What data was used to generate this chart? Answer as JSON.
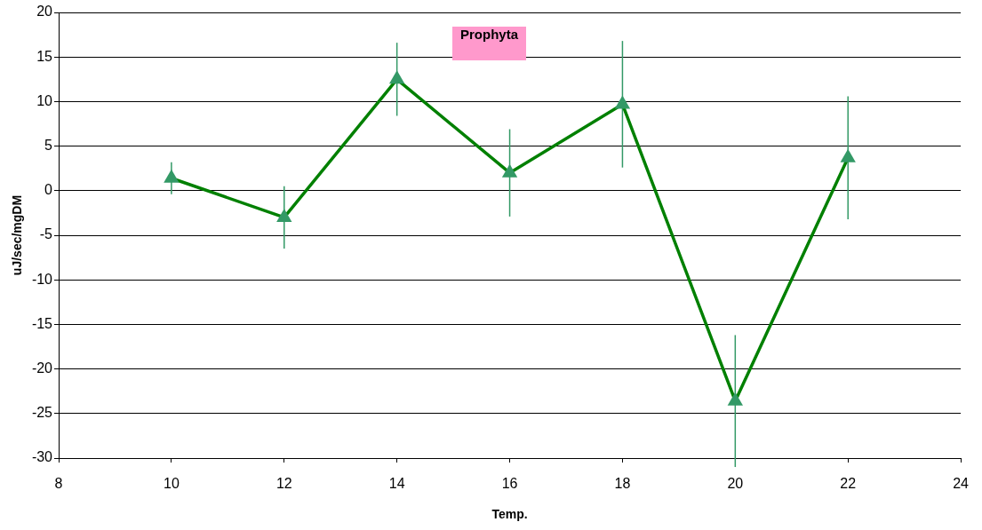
{
  "chart_data": {
    "type": "line",
    "title": "Prophyta",
    "xlabel": "Temp.",
    "ylabel": "uJ/sec/mgDM",
    "x": [
      10,
      12,
      14,
      16,
      18,
      20,
      22
    ],
    "series": [
      {
        "color": "#008000",
        "colors": [
          "#339966",
          "#339966",
          "#339966",
          "#339966",
          "#339966",
          "#339966",
          "#339966"
        ],
        "values": [
          1.4,
          -3.0,
          12.5,
          2.0,
          9.7,
          -23.6,
          3.7
        ],
        "errors": [
          1.8,
          3.5,
          4.1,
          4.9,
          7.1,
          7.4,
          6.9
        ]
      }
    ],
    "xlim": [
      8,
      24
    ],
    "xticks": [
      8,
      10,
      12,
      14,
      16,
      18,
      20,
      22,
      24
    ],
    "ylim": [
      -30,
      20
    ],
    "yticks": [
      -30,
      -25,
      -20,
      -15,
      -10,
      -5,
      0,
      5,
      10,
      15,
      20
    ],
    "grid": "y",
    "marker": "triangle",
    "line_style": "solid"
  }
}
